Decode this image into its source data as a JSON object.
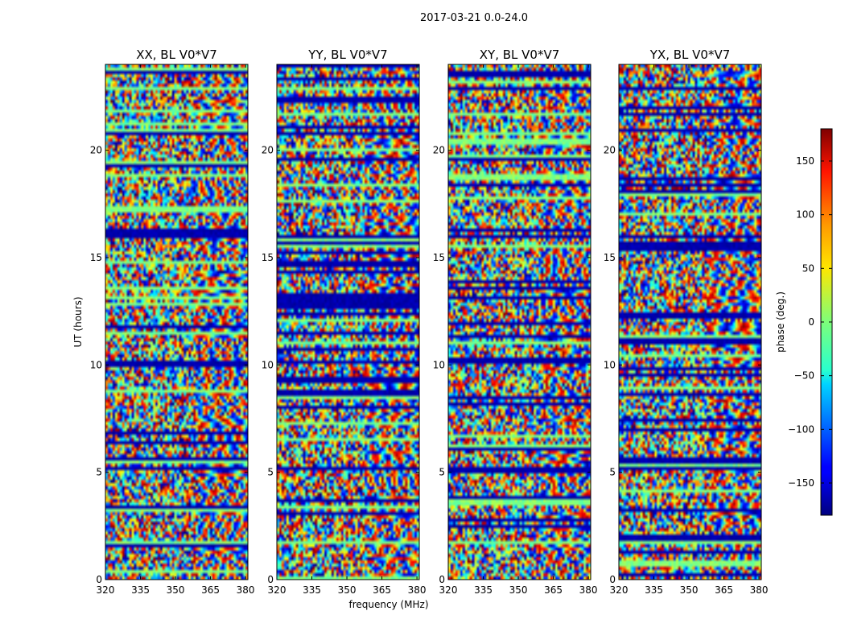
{
  "figure": {
    "suptitle": "2017-03-21 0.0-24.0",
    "xlabel": "frequency (MHz)",
    "ylabel": "UT (hours)",
    "colorbar_label": "phase (deg.)",
    "colorbar_ticks": [
      150,
      100,
      50,
      0,
      -50,
      -100,
      -150
    ],
    "colorbar_tick_labels": [
      "150",
      "100",
      "50",
      "0",
      "−50",
      "−100",
      "−150"
    ],
    "colorbar_range": [
      -180,
      180
    ],
    "colormap": "jet"
  },
  "chart_data": [
    {
      "type": "heatmap",
      "title": "XX, BL V0*V7",
      "xlabel": "frequency (MHz)",
      "ylabel": "UT (hours)",
      "xlim": [
        320,
        381
      ],
      "ylim": [
        0,
        24
      ],
      "xticks": [
        320,
        335,
        350,
        365,
        380
      ],
      "yticks": [
        0,
        5,
        10,
        15,
        20
      ],
      "value_label": "phase (deg.)",
      "value_range": [
        -180,
        180
      ]
    },
    {
      "type": "heatmap",
      "title": "YY, BL V0*V7",
      "xlabel": "frequency (MHz)",
      "ylabel": "UT (hours)",
      "xlim": [
        320,
        381
      ],
      "ylim": [
        0,
        24
      ],
      "xticks": [
        320,
        335,
        350,
        365,
        380
      ],
      "yticks": [
        0,
        5,
        10,
        15,
        20
      ],
      "value_label": "phase (deg.)",
      "value_range": [
        -180,
        180
      ]
    },
    {
      "type": "heatmap",
      "title": "XY, BL V0*V7",
      "xlabel": "frequency (MHz)",
      "ylabel": "UT (hours)",
      "xlim": [
        320,
        381
      ],
      "ylim": [
        0,
        24
      ],
      "xticks": [
        320,
        335,
        350,
        365,
        380
      ],
      "yticks": [
        0,
        5,
        10,
        15,
        20
      ],
      "value_label": "phase (deg.)",
      "value_range": [
        -180,
        180
      ]
    },
    {
      "type": "heatmap",
      "title": "YX, BL V0*V7",
      "xlabel": "frequency (MHz)",
      "ylabel": "UT (hours)",
      "xlim": [
        320,
        381
      ],
      "ylim": [
        0,
        24
      ],
      "xticks": [
        320,
        335,
        350,
        365,
        380
      ],
      "yticks": [
        0,
        5,
        10,
        15,
        20
      ],
      "value_label": "phase (deg.)",
      "value_range": [
        -180,
        180
      ]
    }
  ]
}
